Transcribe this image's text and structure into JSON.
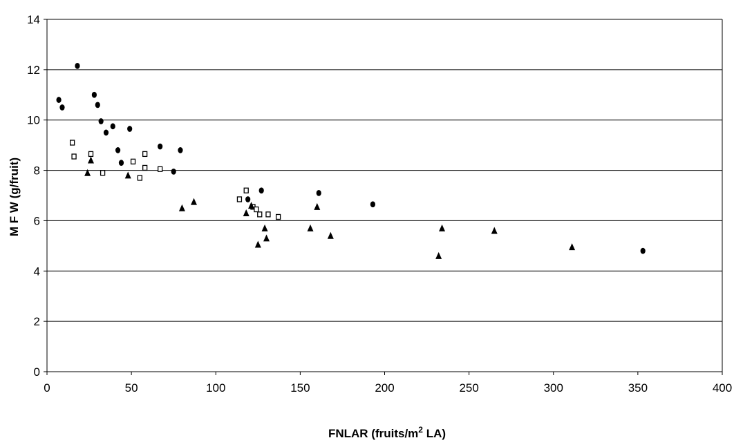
{
  "chart_data": {
    "type": "scatter",
    "title": "",
    "xlabel": "FNLAR (fruits/m",
    "xlabel_sup": "2",
    "xlabel_after": " LA)",
    "ylabel": "M F W  (g/fruit)",
    "xlim": [
      0,
      400
    ],
    "ylim": [
      0,
      14
    ],
    "xticks": [
      0,
      50,
      100,
      150,
      200,
      250,
      300,
      350,
      400
    ],
    "yticks": [
      0,
      2,
      4,
      6,
      8,
      10,
      12,
      14
    ],
    "grid": "horizontal",
    "legend": "none",
    "series": [
      {
        "marker": "circle",
        "color": "#000000",
        "points": [
          [
            7,
            10.8
          ],
          [
            9,
            10.5
          ],
          [
            18,
            12.15
          ],
          [
            28,
            11.0
          ],
          [
            30,
            10.6
          ],
          [
            32,
            9.95
          ],
          [
            35,
            9.5
          ],
          [
            39,
            9.75
          ],
          [
            42,
            8.8
          ],
          [
            44,
            8.3
          ],
          [
            49,
            9.65
          ],
          [
            67,
            8.95
          ],
          [
            75,
            7.95
          ],
          [
            79,
            8.8
          ],
          [
            119,
            6.85
          ],
          [
            127,
            7.2
          ],
          [
            161,
            7.1
          ],
          [
            193,
            6.65
          ],
          [
            353,
            4.8
          ]
        ]
      },
      {
        "marker": "square-open",
        "color": "#000000",
        "points": [
          [
            15,
            9.1
          ],
          [
            16,
            8.55
          ],
          [
            26,
            8.65
          ],
          [
            33,
            7.9
          ],
          [
            51,
            8.35
          ],
          [
            55,
            7.7
          ],
          [
            58,
            8.65
          ],
          [
            58,
            8.1
          ],
          [
            67,
            8.05
          ],
          [
            114,
            6.85
          ],
          [
            118,
            7.2
          ],
          [
            122,
            6.55
          ],
          [
            124,
            6.45
          ],
          [
            126,
            6.25
          ],
          [
            131,
            6.25
          ],
          [
            137,
            6.15
          ]
        ]
      },
      {
        "marker": "triangle",
        "color": "#000000",
        "points": [
          [
            24,
            7.9
          ],
          [
            26,
            8.4
          ],
          [
            48,
            7.8
          ],
          [
            80,
            6.5
          ],
          [
            87,
            6.75
          ],
          [
            118,
            6.3
          ],
          [
            121,
            6.6
          ],
          [
            125,
            5.05
          ],
          [
            129,
            5.7
          ],
          [
            130,
            5.3
          ],
          [
            156,
            5.7
          ],
          [
            160,
            6.55
          ],
          [
            168,
            5.4
          ],
          [
            232,
            4.6
          ],
          [
            234,
            5.7
          ],
          [
            265,
            5.6
          ],
          [
            311,
            4.95
          ]
        ]
      }
    ]
  }
}
